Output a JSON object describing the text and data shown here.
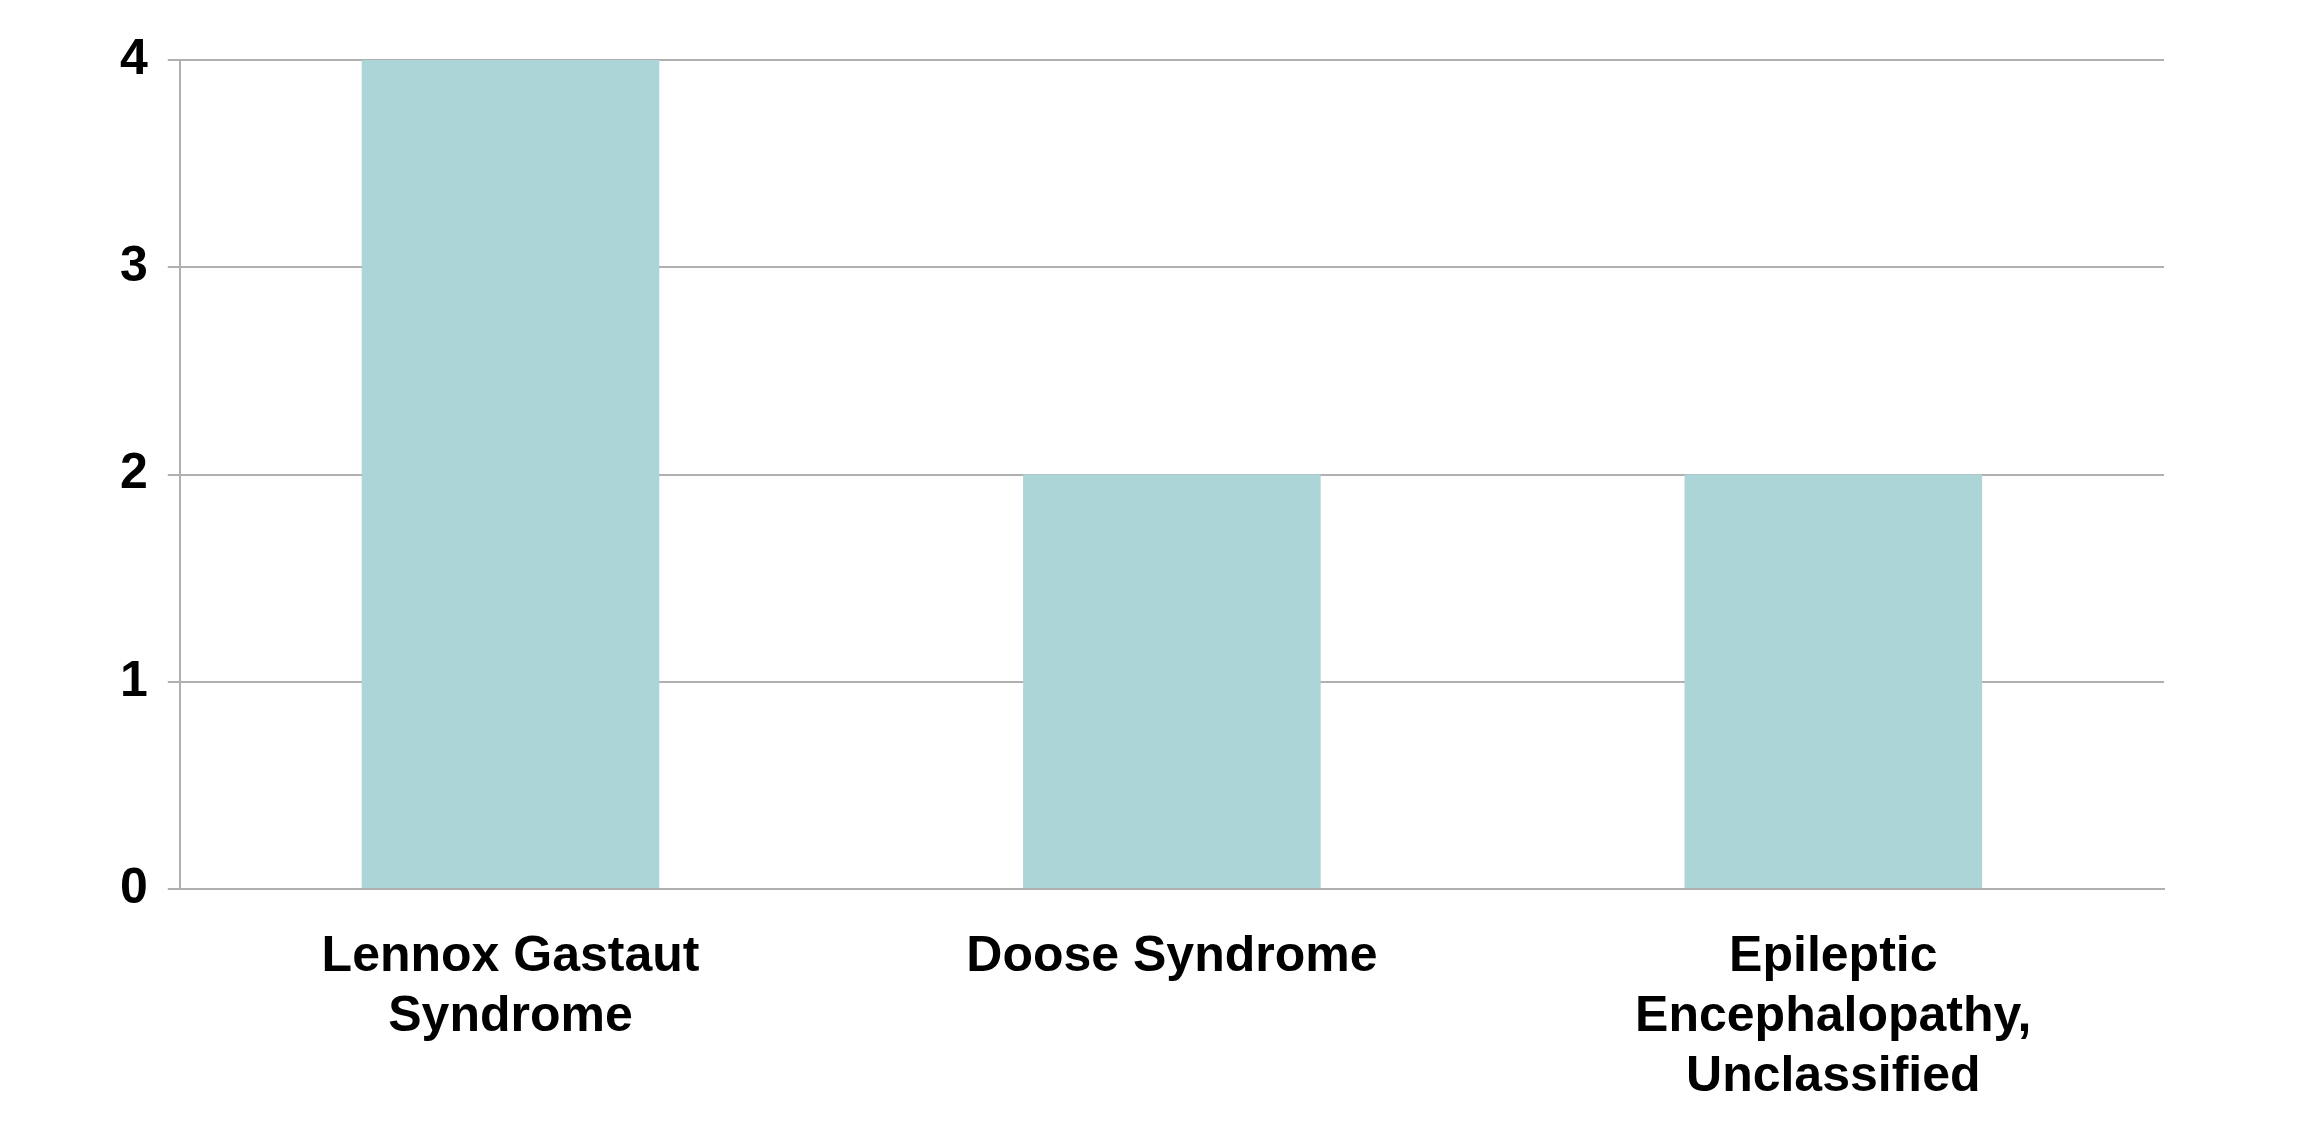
{
  "chart_data": {
    "type": "bar",
    "categories": [
      "Lennox Gastaut Syndrome",
      "Doose Syndrome",
      "Epileptic Encephalopathy, Unclassified"
    ],
    "values": [
      4,
      2,
      2
    ],
    "color": "#acd5d8",
    "ylim": [
      0,
      4
    ],
    "yticks": [
      0,
      1,
      2,
      3,
      4
    ],
    "grid": "y",
    "legend": false
  }
}
